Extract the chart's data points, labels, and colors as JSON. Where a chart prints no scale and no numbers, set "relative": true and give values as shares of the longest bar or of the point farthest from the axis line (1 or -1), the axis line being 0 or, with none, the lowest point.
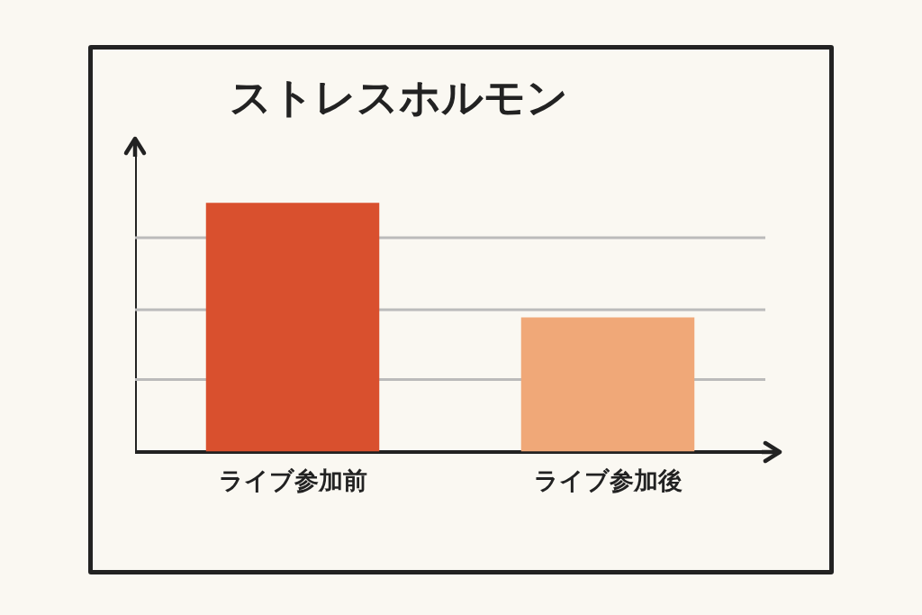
{
  "chart_data": {
    "type": "bar",
    "title": "ストレスホルモン",
    "categories": [
      "ライブ参加前",
      "ライブ参加後"
    ],
    "values": [
      1,
      0.54
    ],
    "colors": [
      "#d9502e",
      "#f0a878"
    ],
    "relative": true,
    "legend": false,
    "ref_lines": [
      {
        "axis": "y",
        "value": 0.29,
        "color": "#bbbbbb"
      },
      {
        "axis": "y",
        "value": 0.57,
        "color": "#bbbbbb"
      },
      {
        "axis": "y",
        "value": 0.86,
        "color": "#bbbbbb"
      }
    ]
  }
}
